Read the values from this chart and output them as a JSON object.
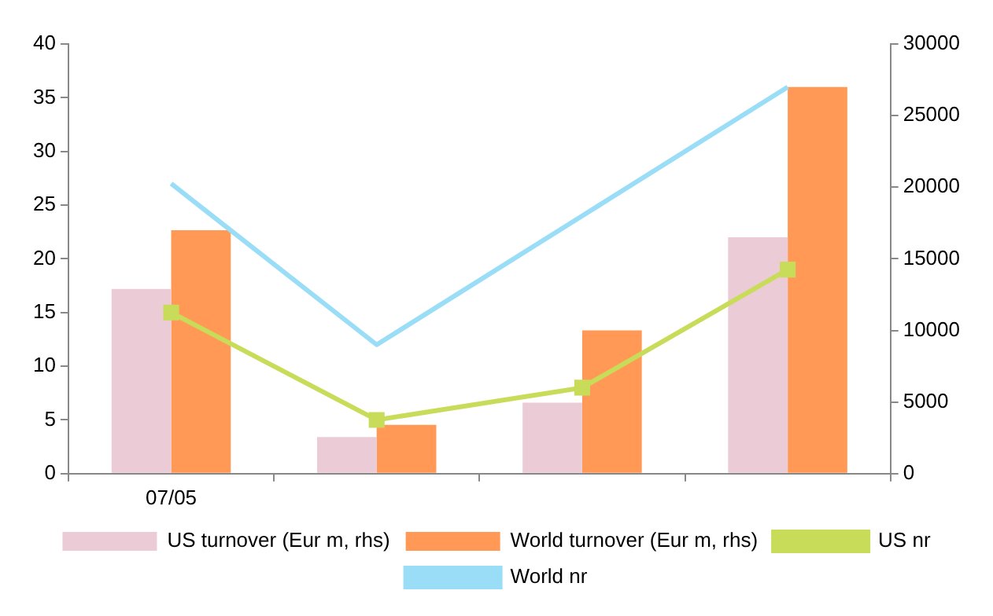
{
  "chart_data": {
    "type": "bar",
    "categories": [
      "07/05",
      null,
      null,
      null
    ],
    "series": [
      {
        "name": "US turnover (Eur m, rhs)",
        "color": "#ebcbd6",
        "axis": "y2",
        "values": [
          12900,
          2550,
          4950,
          16500
        ]
      },
      {
        "name": "World turnover (Eur m, rhs)",
        "color": "#ff9955",
        "axis": "y2",
        "values": [
          17000,
          3400,
          10000,
          27000
        ]
      },
      {
        "name": "US nr",
        "type": "line",
        "color": "#c8dc5a",
        "marker": "square",
        "values": [
          15,
          5,
          8,
          19
        ]
      },
      {
        "name": "World nr",
        "type": "line",
        "color": "#99ddf7",
        "marker": "none",
        "values": [
          27,
          12,
          24,
          36
        ]
      }
    ],
    "ylim": [
      0,
      40
    ],
    "yticks": [
      0,
      5,
      10,
      15,
      20,
      25,
      30,
      35,
      40
    ],
    "y2lim": [
      0,
      30000
    ],
    "y2ticks": [
      0,
      5000,
      10000,
      15000,
      20000,
      25000,
      30000
    ],
    "grid": false,
    "legend": "bottom"
  }
}
